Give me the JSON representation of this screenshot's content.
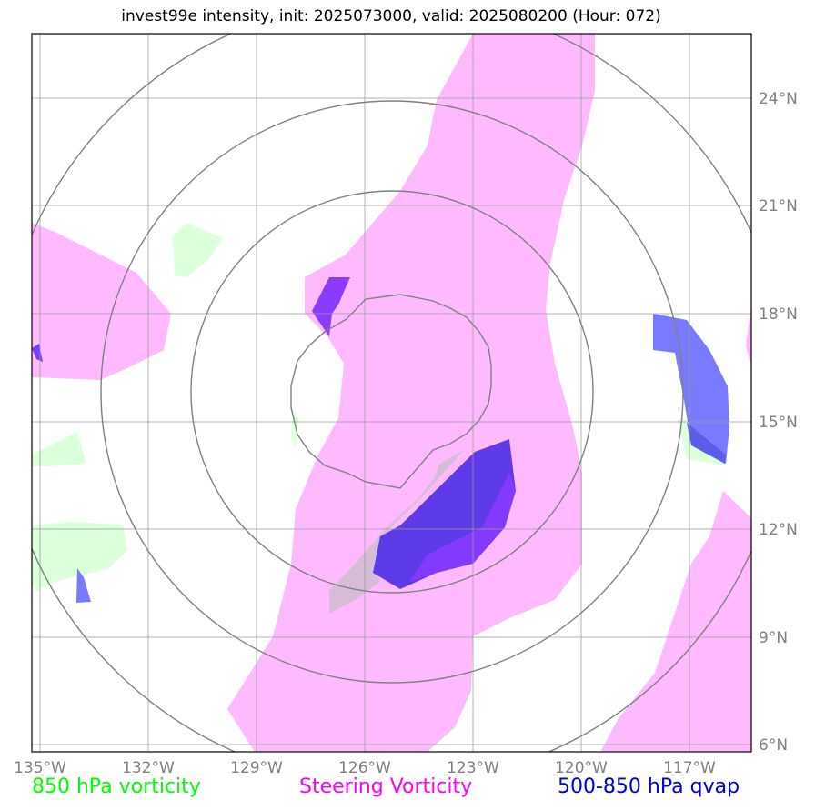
{
  "title": "invest99e intensity, init: 2025073000, valid: 2025080200 (Hour: 072)",
  "lon_labels": [
    "135°W",
    "132°W",
    "129°W",
    "126°W",
    "123°W",
    "120°W",
    "117°W"
  ],
  "lat_labels": [
    "24°N",
    "21°N",
    "18°N",
    "15°N",
    "12°N",
    "9°N",
    "6°N"
  ],
  "legend": {
    "vorticity_850": {
      "label": "850 hPa vorticity",
      "color": "#00ff00"
    },
    "steering": {
      "label": "Steering Vorticity",
      "color": "#ff00ff"
    },
    "qvap": {
      "label": "500-850 hPa qvap",
      "color": "#0000dd"
    }
  },
  "fill_colors": {
    "steering": "#ffbaff",
    "vorticity_850": "#dcffdc",
    "qvap_overlap": "#5d3be8",
    "qvap": "#7a7aff",
    "violet": "#8a3bff",
    "grey_overlap": "#d6bcd6"
  },
  "map": {
    "lon_range": [
      -135.2,
      -115.2
    ],
    "lat_range": [
      5.8,
      25.8
    ],
    "gridlines": true,
    "range_rings_center": {
      "lon": -125.8,
      "lat": 15.0
    }
  }
}
